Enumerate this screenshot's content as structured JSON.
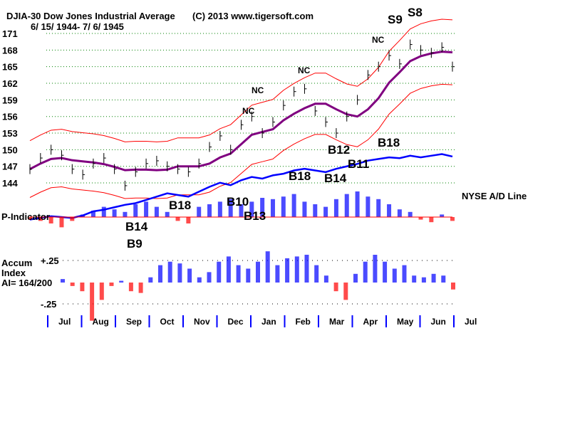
{
  "chart_data": {
    "type": "line",
    "title": "DJIA-30  Dow Jones Industrial Average",
    "copyright": "(C) 2013 www.tigersoft.com",
    "date_range": "6/ 15/ 1944- 7/ 6/ 1945",
    "price_axis": {
      "ticks": [
        "171",
        "168",
        "165",
        "162",
        "159",
        "156",
        "153",
        "150",
        "147",
        "144"
      ],
      "ylim": [
        143,
        172
      ]
    },
    "months": [
      "Jul",
      "Aug",
      "Sep",
      "Oct",
      "Nov",
      "Dec",
      "Jan",
      "Feb",
      "Mar",
      "Apr",
      "May",
      "Jun",
      "Jul"
    ],
    "closes": [
      146.5,
      148.5,
      150,
      149,
      146.5,
      145.5,
      147.5,
      148.5,
      146.5,
      143.5,
      146,
      147.5,
      148,
      147,
      146.5,
      146,
      147.5,
      150.5,
      152.5,
      150,
      154.5,
      156,
      153,
      155,
      158,
      160.5,
      161,
      157,
      155,
      153,
      156,
      159,
      163.5,
      165,
      167,
      165.5,
      169,
      168,
      167.5,
      168.5,
      165
    ],
    "ad_line": {
      "label": "NYSE A/D Line",
      "values": [
        10,
        12,
        14,
        13,
        12,
        15,
        20,
        22,
        25,
        28,
        30,
        34,
        38,
        42,
        40,
        38,
        44,
        50,
        55,
        52,
        58,
        62,
        60,
        64,
        66,
        70,
        72,
        70,
        68,
        72,
        75,
        78,
        82,
        84,
        86,
        85,
        88,
        86,
        88,
        90,
        87
      ]
    },
    "p_indicator": {
      "label": "P-Indicator",
      "values": [
        -2,
        -3,
        -5,
        -8,
        -3,
        2,
        5,
        8,
        6,
        4,
        10,
        12,
        8,
        4,
        -3,
        -5,
        8,
        10,
        12,
        14,
        10,
        12,
        15,
        14,
        16,
        18,
        12,
        10,
        8,
        14,
        18,
        20,
        16,
        14,
        10,
        6,
        4,
        -2,
        -4,
        2,
        -3
      ]
    },
    "accum_index": {
      "label1": "Accum",
      "label2": "Index",
      "ai_text": "AI= 164/200",
      "upper": "+.25",
      "lower": "-.25",
      "values": [
        0.02,
        -0.02,
        -0.05,
        -0.22,
        -0.1,
        -0.02,
        0.01,
        -0.05,
        -0.06,
        0.03,
        0.1,
        0.12,
        0.11,
        0.08,
        0.03,
        0.06,
        0.12,
        0.15,
        0.1,
        0.08,
        0.12,
        0.18,
        0.1,
        0.14,
        0.15,
        0.16,
        0.1,
        0.04,
        -0.05,
        -0.1,
        0.05,
        0.12,
        0.16,
        0.12,
        0.08,
        0.1,
        0.04,
        0.03,
        0.05,
        0.04,
        -0.04
      ]
    },
    "signals": [
      "NC",
      "NC",
      "NC",
      "NC",
      "S9",
      "S8",
      "B18",
      "B12",
      "B11",
      "B18",
      "B14",
      "B10",
      "B13",
      "B18",
      "B14",
      "B9"
    ],
    "colors": {
      "up": "#0000ff",
      "down": "#ff0000",
      "ma": "#800080",
      "band": "#ff0000",
      "grid": "#008000"
    }
  }
}
